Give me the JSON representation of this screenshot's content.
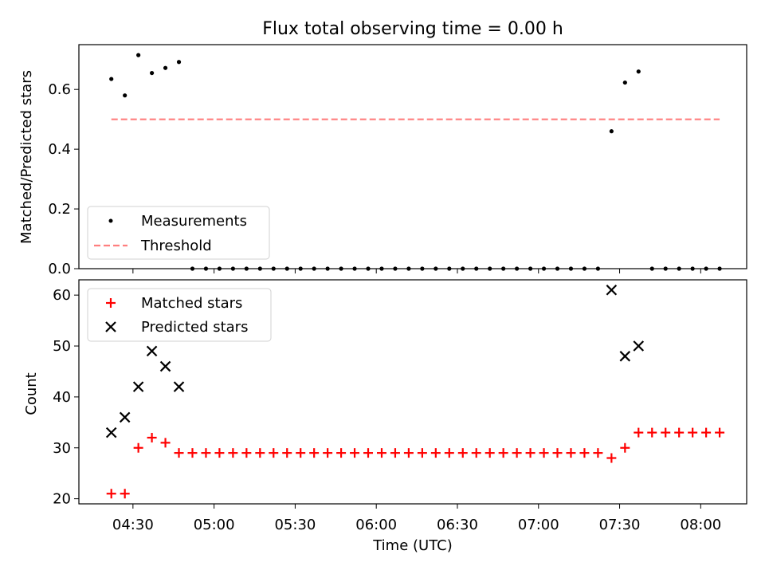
{
  "figure": {
    "title": "Flux total observing time = 0.00 h",
    "xlabel": "Time (UTC)"
  },
  "chart_data": [
    {
      "type": "scatter",
      "title": "Flux total observing time = 0.00 h",
      "xlabel": "",
      "ylabel": "Matched/Predicted stars",
      "ylim": [
        0,
        0.75
      ],
      "yticks": [
        "0.0",
        "0.2",
        "0.4",
        "0.6"
      ],
      "xlim": [
        "04:10",
        "08:17"
      ],
      "legend_position": "lower-left",
      "series": [
        {
          "name": "Measurements",
          "kind": "scatter",
          "marker": "dot",
          "color": "#000000",
          "x": [
            "04:22",
            "04:27",
            "04:32",
            "04:37",
            "04:42",
            "04:47",
            "04:52",
            "04:57",
            "05:02",
            "05:07",
            "05:12",
            "05:17",
            "05:22",
            "05:27",
            "05:32",
            "05:37",
            "05:42",
            "05:47",
            "05:52",
            "05:57",
            "06:02",
            "06:07",
            "06:12",
            "06:17",
            "06:22",
            "06:27",
            "06:32",
            "06:37",
            "06:42",
            "06:47",
            "06:52",
            "06:57",
            "07:02",
            "07:07",
            "07:12",
            "07:17",
            "07:22",
            "07:27",
            "07:32",
            "07:37",
            "07:42",
            "07:47",
            "07:52",
            "07:57",
            "08:02",
            "08:07"
          ],
          "y": [
            0.635,
            0.58,
            0.715,
            0.655,
            0.672,
            0.692,
            0,
            0,
            0,
            0,
            0,
            0,
            0,
            0,
            0,
            0,
            0,
            0,
            0,
            0,
            0,
            0,
            0,
            0,
            0,
            0,
            0,
            0,
            0,
            0,
            0,
            0,
            0,
            0,
            0,
            0,
            0,
            0.46,
            0.623,
            0.66,
            0,
            0,
            0,
            0,
            0,
            0
          ]
        },
        {
          "name": "Threshold",
          "kind": "line",
          "style": "dashed",
          "color": "#ff7f7f",
          "x": [
            "04:22",
            "08:07"
          ],
          "y": [
            0.5,
            0.5
          ]
        }
      ]
    },
    {
      "type": "scatter",
      "xlabel": "Time (UTC)",
      "ylabel": "Count",
      "ylim": [
        19,
        63
      ],
      "yticks": [
        "20",
        "30",
        "40",
        "50",
        "60"
      ],
      "xticks": [
        "04:30",
        "05:00",
        "05:30",
        "06:00",
        "06:30",
        "07:00",
        "07:30",
        "08:00"
      ],
      "xlim": [
        "04:10",
        "08:17"
      ],
      "legend_position": "upper-left",
      "series": [
        {
          "name": "Matched stars",
          "kind": "scatter",
          "marker": "plus",
          "color": "#ff0000",
          "x": [
            "04:22",
            "04:27",
            "04:32",
            "04:37",
            "04:42",
            "04:47",
            "04:52",
            "04:57",
            "05:02",
            "05:07",
            "05:12",
            "05:17",
            "05:22",
            "05:27",
            "05:32",
            "05:37",
            "05:42",
            "05:47",
            "05:52",
            "05:57",
            "06:02",
            "06:07",
            "06:12",
            "06:17",
            "06:22",
            "06:27",
            "06:32",
            "06:37",
            "06:42",
            "06:47",
            "06:52",
            "06:57",
            "07:02",
            "07:07",
            "07:12",
            "07:17",
            "07:22",
            "07:27",
            "07:32",
            "07:37",
            "07:42",
            "07:47",
            "07:52",
            "07:57",
            "08:02",
            "08:07"
          ],
          "y": [
            21,
            21,
            30,
            32,
            31,
            29,
            29,
            29,
            29,
            29,
            29,
            29,
            29,
            29,
            29,
            29,
            29,
            29,
            29,
            29,
            29,
            29,
            29,
            29,
            29,
            29,
            29,
            29,
            29,
            29,
            29,
            29,
            29,
            29,
            29,
            29,
            29,
            28,
            30,
            33,
            33,
            33,
            33,
            33,
            33,
            33
          ]
        },
        {
          "name": "Predicted stars",
          "kind": "scatter",
          "marker": "x",
          "color": "#000000",
          "x": [
            "04:22",
            "04:27",
            "04:32",
            "04:37",
            "04:42",
            "04:47",
            "07:27",
            "07:32",
            "07:37"
          ],
          "y": [
            33,
            36,
            42,
            49,
            46,
            42,
            61,
            48,
            50
          ]
        }
      ]
    }
  ]
}
